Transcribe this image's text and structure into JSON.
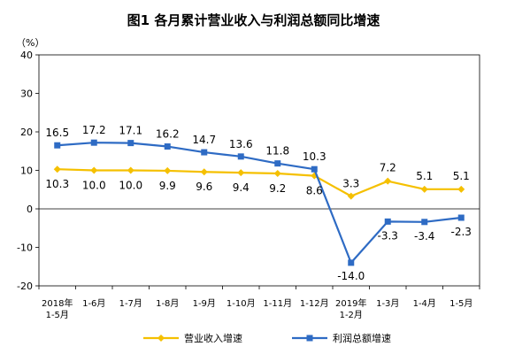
{
  "chart_data": {
    "type": "line",
    "title": "图1  各月累计营业收入与利润总额同比增速",
    "unit": "（%）",
    "xlabel": "",
    "ylabel": "",
    "ylim": [
      -20,
      40
    ],
    "yticks": [
      -20,
      -10,
      0,
      10,
      20,
      30,
      40
    ],
    "grid": false,
    "legend_position": "bottom",
    "categories": [
      [
        "2018年",
        "1-5月"
      ],
      [
        "1-6月"
      ],
      [
        "1-7月"
      ],
      [
        "1-8月"
      ],
      [
        "1-9月"
      ],
      [
        "1-10月"
      ],
      [
        "1-11月"
      ],
      [
        "1-12月"
      ],
      [
        "2019年",
        "1-2月"
      ],
      [
        "1-3月"
      ],
      [
        "1-4月"
      ],
      [
        "1-5月"
      ]
    ],
    "series": [
      {
        "name": "营业收入增速",
        "color": "#f5c000",
        "marker": "diamond",
        "values": [
          10.3,
          10.0,
          10.0,
          9.9,
          9.6,
          9.4,
          9.2,
          8.6,
          3.3,
          7.2,
          5.1,
          5.1
        ],
        "labels": [
          "10.3",
          "10.0",
          "10.0",
          "9.9",
          "9.6",
          "9.4",
          "9.2",
          "8.6",
          "3.3",
          "7.2",
          "5.1",
          "5.1"
        ]
      },
      {
        "name": "利润总额增速",
        "color": "#2e6bc4",
        "marker": "square",
        "values": [
          16.5,
          17.2,
          17.1,
          16.2,
          14.7,
          13.6,
          11.8,
          10.3,
          -14.0,
          -3.3,
          -3.4,
          -2.3
        ],
        "labels": [
          "16.5",
          "17.2",
          "17.1",
          "16.2",
          "14.7",
          "13.6",
          "11.8",
          "10.3",
          "-14.0",
          "-3.3",
          "-3.4",
          "-2.3"
        ]
      }
    ]
  }
}
